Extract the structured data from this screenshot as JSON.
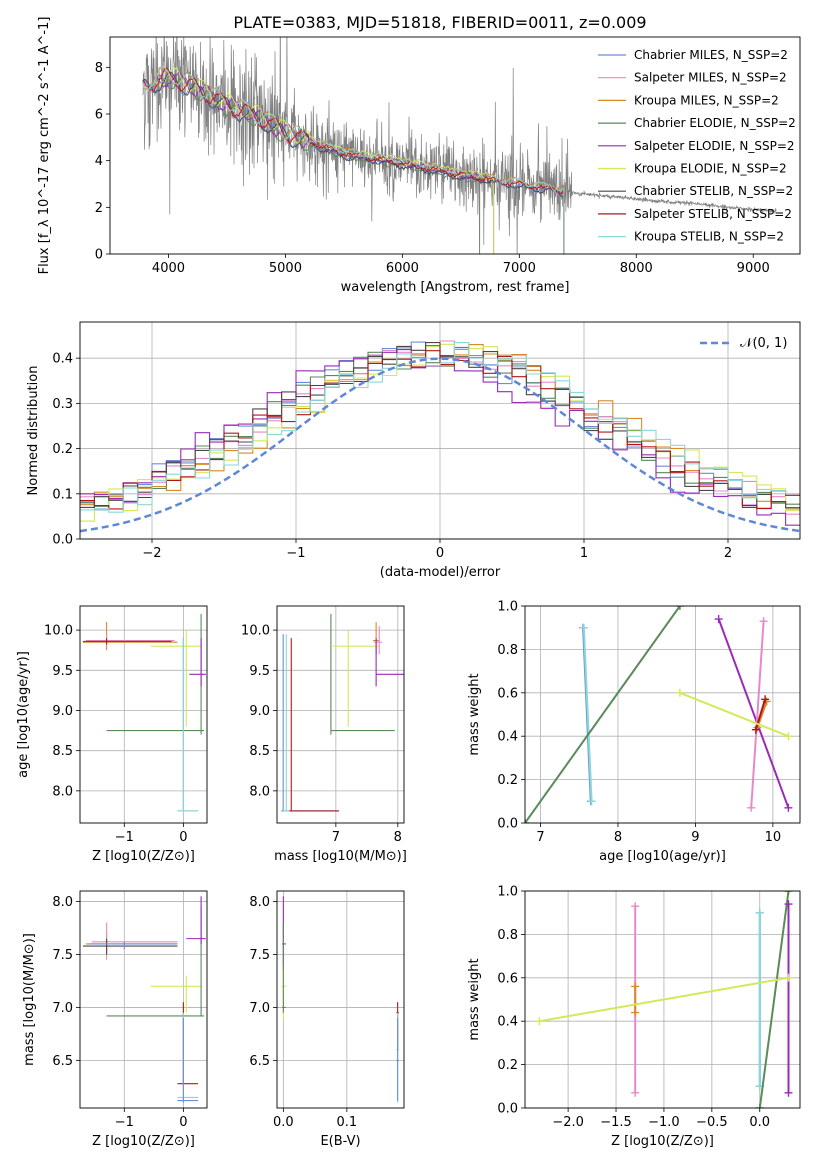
{
  "figure": {
    "title": "PLATE=0383, MJD=51818, FIBERID=0011, z=0.009"
  },
  "palette": {
    "Chabrier MILES": "#6a8fd8",
    "Salpeter MILES": "#e58ac8",
    "Kroupa MILES": "#d88a2a",
    "Chabrier ELODIE": "#5a8a5a",
    "Salpeter ELODIE": "#9a2ab8",
    "Kroupa ELODIE": "#d4e85a",
    "Chabrier STELIB": "#4a4a4a",
    "Salpeter STELIB": "#b01818",
    "Kroupa STELIB": "#8ad8d8",
    "data": "#808080",
    "normal": "#5f87d8"
  },
  "chart_data": [
    {
      "id": "spectrum",
      "type": "line",
      "xlabel": "wavelength [Angstrom, rest frame]",
      "ylabel": "Flux [f_λ 10^-17 erg cm^-2 s^-1 A^-1]",
      "xlim": [
        3500,
        9400
      ],
      "ylim": [
        0,
        9.3
      ],
      "xticks": [
        4000,
        5000,
        6000,
        7000,
        8000,
        9000
      ],
      "yticks": [
        0,
        2,
        4,
        6,
        8
      ],
      "legend_position": "upper right",
      "legend": [
        "Chabrier MILES, N_SSP=2",
        "Salpeter MILES, N_SSP=2",
        "Kroupa MILES, N_SSP=2",
        "Chabrier ELODIE, N_SSP=2",
        "Salpeter ELODIE, N_SSP=2",
        "Kroupa ELODIE, N_SSP=2",
        "Chabrier STELIB, N_SSP=2",
        "Salpeter STELIB, N_SSP=2",
        "Kroupa STELIB, N_SSP=2"
      ],
      "data_x_range": [
        3780,
        9200
      ],
      "continuum_anchor": {
        "x": [
          3780,
          4000,
          4200,
          4500,
          4800,
          5000,
          5500,
          6000,
          6500,
          7000,
          7500,
          8000,
          8500,
          9000,
          9200
        ],
        "y": [
          7.2,
          7.6,
          7.2,
          6.4,
          5.8,
          5.2,
          4.3,
          3.9,
          3.4,
          3.0,
          2.6,
          2.35,
          2.15,
          1.9,
          1.85
        ]
      },
      "model_ranges": {
        "Chabrier MILES": [
          3780,
          7380
        ],
        "Salpeter MILES": [
          3780,
          7380
        ],
        "Kroupa MILES": [
          3780,
          7380
        ],
        "Chabrier ELODIE": [
          3900,
          6780
        ],
        "Salpeter ELODIE": [
          3900,
          6780
        ],
        "Kroupa ELODIE": [
          3900,
          6780
        ],
        "Chabrier STELIB": [
          3780,
          7380
        ],
        "Salpeter STELIB": [
          3780,
          7380
        ],
        "Kroupa STELIB": [
          3780,
          7380
        ]
      }
    },
    {
      "id": "residuals",
      "type": "histogram",
      "xlabel": "(data-model)/error",
      "ylabel": "Normed distribution",
      "xlim": [
        -2.5,
        2.5
      ],
      "ylim": [
        0,
        0.48
      ],
      "xticks": [
        -2,
        -1,
        0,
        1,
        2
      ],
      "yticks": [
        0.0,
        0.1,
        0.2,
        0.3,
        0.4
      ],
      "grid": true,
      "legend": [
        "𝒩(0, 1)"
      ],
      "legend_position": "upper right",
      "bin_width": 0.1
    },
    {
      "id": "age_vs_Z",
      "type": "errorbar",
      "xlabel": "Z [log10(Z/Z⊙)]",
      "ylabel": "age [log10(age/yr)]",
      "xlim": [
        -1.75,
        0.4
      ],
      "ylim": [
        7.6,
        10.3
      ],
      "xticks": [
        -1,
        0
      ],
      "yticks": [
        8.0,
        8.5,
        9.0,
        9.5,
        10.0
      ],
      "grid": true
    },
    {
      "id": "age_vs_mass",
      "type": "errorbar",
      "xlabel": "mass [log10(M/M⊙)]",
      "ylabel": "",
      "xlim": [
        6.05,
        8.1
      ],
      "ylim": [
        7.6,
        10.3
      ],
      "xticks": [
        7,
        8
      ],
      "yticks": [
        8.0,
        8.5,
        9.0,
        9.5,
        10.0
      ],
      "grid": true
    },
    {
      "id": "weight_vs_age",
      "type": "line",
      "xlabel": "age [log10(age/yr)]",
      "ylabel": "mass weight",
      "xlim": [
        6.8,
        10.35
      ],
      "ylim": [
        0,
        1.0
      ],
      "xticks": [
        7,
        8,
        9,
        10
      ],
      "yticks": [
        0.0,
        0.2,
        0.4,
        0.6,
        0.8,
        1.0
      ],
      "grid": true,
      "series": [
        {
          "model": "Chabrier MILES",
          "x": [
            7.55,
            7.65
          ],
          "y": [
            0.9,
            0.1
          ]
        },
        {
          "model": "Kroupa STELIB",
          "x": [
            7.56,
            7.66
          ],
          "y": [
            0.9,
            0.1
          ]
        },
        {
          "model": "Chabrier ELODIE",
          "x": [
            6.8,
            8.8
          ],
          "y": [
            0.0,
            1.0
          ]
        },
        {
          "model": "Salpeter ELODIE",
          "x": [
            9.3,
            10.2
          ],
          "y": [
            0.94,
            0.07
          ]
        },
        {
          "model": "Salpeter MILES",
          "x": [
            9.72,
            9.88
          ],
          "y": [
            0.07,
            0.93
          ]
        },
        {
          "model": "Kroupa MILES",
          "x": [
            9.8,
            9.92
          ],
          "y": [
            0.44,
            0.56
          ]
        },
        {
          "model": "Salpeter STELIB",
          "x": [
            9.78,
            9.9
          ],
          "y": [
            0.43,
            0.57
          ]
        },
        {
          "model": "Kroupa ELODIE",
          "x": [
            8.8,
            10.2
          ],
          "y": [
            0.6,
            0.4
          ]
        }
      ]
    },
    {
      "id": "mass_vs_Z",
      "type": "errorbar",
      "xlabel": "Z [log10(Z/Z⊙)]",
      "ylabel": "mass [log10(M/M⊙)]",
      "xlim": [
        -1.75,
        0.4
      ],
      "ylim": [
        6.05,
        8.1
      ],
      "xticks": [
        -1,
        0
      ],
      "yticks": [
        6.5,
        7.0,
        7.5,
        8.0
      ],
      "grid": true
    },
    {
      "id": "mass_vs_ebv",
      "type": "errorbar",
      "xlabel": "E(B-V)",
      "ylabel": "",
      "xlim": [
        -0.01,
        0.19
      ],
      "ylim": [
        6.05,
        8.1
      ],
      "xticks": [
        0.0,
        0.1
      ],
      "yticks": [
        6.5,
        7.0,
        7.5,
        8.0
      ],
      "grid": true
    },
    {
      "id": "weight_vs_Z",
      "type": "line",
      "xlabel": "Z [log10(Z/Z⊙)]",
      "ylabel": "mass weight",
      "xlim": [
        -2.45,
        0.42
      ],
      "ylim": [
        0,
        1.0
      ],
      "xticks": [
        -2.0,
        -1.5,
        -1.0,
        -0.5,
        0.0
      ],
      "yticks": [
        0.0,
        0.2,
        0.4,
        0.6,
        0.8,
        1.0
      ],
      "grid": true,
      "series": [
        {
          "model": "Salpeter MILES",
          "x": [
            -1.3,
            -1.3
          ],
          "y": [
            0.07,
            0.93
          ]
        },
        {
          "model": "Kroupa MILES",
          "x": [
            -1.3,
            -1.3
          ],
          "y": [
            0.44,
            0.56
          ]
        },
        {
          "model": "Chabrier MILES",
          "x": [
            0.0,
            0.0
          ],
          "y": [
            0.1,
            0.9
          ]
        },
        {
          "model": "Kroupa STELIB",
          "x": [
            0.0,
            0.0
          ],
          "y": [
            0.1,
            0.9
          ]
        },
        {
          "model": "Chabrier ELODIE",
          "x": [
            0.0,
            0.3
          ],
          "y": [
            0.0,
            1.0
          ]
        },
        {
          "model": "Salpeter ELODIE",
          "x": [
            0.3,
            0.3
          ],
          "y": [
            0.07,
            0.94
          ]
        },
        {
          "model": "Kroupa ELODIE",
          "x": [
            -2.3,
            0.3
          ],
          "y": [
            0.4,
            0.6
          ]
        }
      ]
    }
  ]
}
